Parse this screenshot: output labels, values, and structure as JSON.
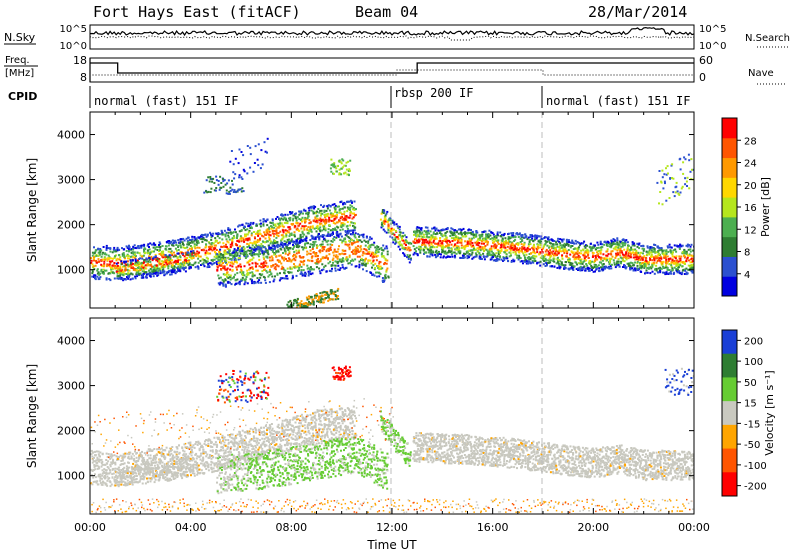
{
  "header": {
    "station": "Fort Hays East (fitACF)",
    "beam": "Beam 04",
    "date": "28/Mar/2014"
  },
  "noise_panel": {
    "left_label": "N.Sky",
    "left_ticks": [
      "10^5",
      "10^0"
    ],
    "right_ticks": [
      "10^5",
      "10^0"
    ],
    "right_label": "N.Search"
  },
  "freq_panel": {
    "left_label_top": "Freq.",
    "left_label_bottom": "[MHz]",
    "left_ticks": [
      "18",
      "8"
    ],
    "right_ticks": [
      "60",
      "0"
    ],
    "right_label": "Nave"
  },
  "cpid": {
    "label": "CPID",
    "segments": [
      {
        "label": "normal (fast) 151 IF",
        "start": "00:00",
        "end": "12:00"
      },
      {
        "label": "rbsp 200 IF",
        "start": "12:00",
        "end": "18:00"
      },
      {
        "label": "normal (fast) 151 IF",
        "start": "18:00",
        "end": "24:00"
      }
    ]
  },
  "colors": {
    "power_scale": [
      "#0000e0",
      "#2b50d0",
      "#2e7d32",
      "#4caf50",
      "#b5e61d",
      "#ffd700",
      "#ff9900",
      "#ff5500",
      "#ff0000"
    ],
    "velocity_scale": [
      "#1a3fd6",
      "#2e7d32",
      "#66cc33",
      "#c9c9c0",
      "#ffa500",
      "#ff5500",
      "#ff0000"
    ],
    "ground_scatter": "#c8c8bf"
  },
  "chart_data": [
    {
      "type": "heatmap",
      "panel": "power",
      "xlabel": "",
      "ylabel": "Slant Range [km]",
      "xlim": [
        "00:00",
        "24:00"
      ],
      "ylim": [
        150,
        4500
      ],
      "yticks": [
        "1000",
        "2000",
        "3000",
        "4000"
      ],
      "colorbar": {
        "label": "Power [dB]",
        "range": [
          0,
          32
        ],
        "ticks": [
          "4",
          "8",
          "12",
          "16",
          "20",
          "24",
          "28"
        ]
      },
      "regions": [
        {
          "t_start": 0.0,
          "t_end": 12.0,
          "range_center_km": [
            1150,
            1200,
            1550,
            2150,
            2500
          ],
          "value_db": 20
        },
        {
          "t_start": 5.0,
          "t_end": 11.8,
          "range_center_km": [
            1000,
            1100,
            1300,
            1600
          ],
          "value_db": 18
        },
        {
          "t_start": 12.8,
          "t_end": 24.0,
          "range_center_km": [
            1650,
            1450,
            1350,
            1250
          ],
          "value_db": 24
        }
      ]
    },
    {
      "type": "heatmap",
      "panel": "velocity",
      "xlabel": "Time UT",
      "ylabel": "Slant Range [km]",
      "xlim": [
        "00:00",
        "24:00"
      ],
      "ylim": [
        150,
        4500
      ],
      "xticks": [
        "00:00",
        "04:00",
        "08:00",
        "12:00",
        "16:00",
        "20:00",
        "00:00"
      ],
      "yticks": [
        "1000",
        "2000",
        "3000",
        "4000"
      ],
      "colorbar": {
        "label": "Velocity [m s⁻¹]",
        "range": [
          -250,
          250
        ],
        "ticks": [
          "200",
          "100",
          "50",
          "15",
          "-15",
          "-50",
          "-100",
          "-200"
        ]
      },
      "regions": [
        {
          "t_start": 0.0,
          "t_end": 12.0,
          "kind": "ground scatter"
        },
        {
          "t_start": 4.5,
          "t_end": 12.0,
          "value_ms": 40
        },
        {
          "t_start": 12.8,
          "t_end": 24.0,
          "kind": "ground scatter"
        }
      ]
    }
  ]
}
